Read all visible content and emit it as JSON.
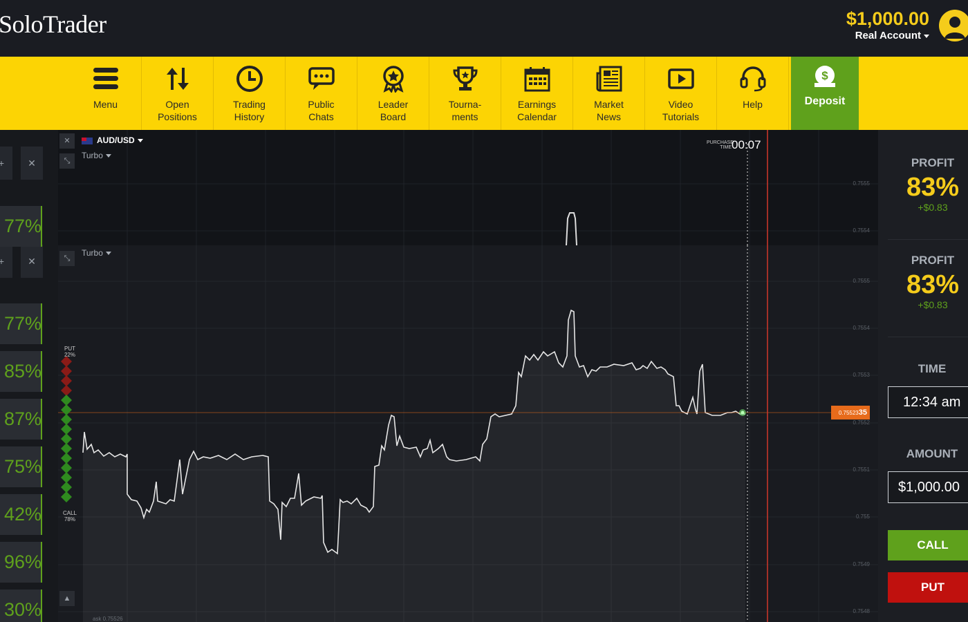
{
  "app": {
    "logo": "SoloTrader"
  },
  "account": {
    "balance": "$1,000.00",
    "account_type": "Real Account"
  },
  "toolbar": {
    "items": [
      {
        "label": "Menu",
        "icon": "menu-icon"
      },
      {
        "label": "Open\nPositions",
        "icon": "updown-arrows-icon"
      },
      {
        "label": "Trading\nHistory",
        "icon": "clock-icon"
      },
      {
        "label": "Public\nChats",
        "icon": "chat-icon"
      },
      {
        "label": "Leader\nBoard",
        "icon": "award-icon"
      },
      {
        "label": "Tourna-\nments",
        "icon": "trophy-icon"
      },
      {
        "label": "Earnings\nCalendar",
        "icon": "calendar-icon"
      },
      {
        "label": "Market\nNews",
        "icon": "newspaper-icon"
      },
      {
        "label": "Video\nTutorials",
        "icon": "video-icon"
      },
      {
        "label": "Help",
        "icon": "headset-icon"
      }
    ],
    "deposit_label": "Deposit"
  },
  "left_strip": {
    "percents": [
      "77%",
      "77%",
      "85%",
      "87%",
      "75%",
      "42%",
      "96%",
      "30%"
    ]
  },
  "chart": {
    "pair": "AUD/USD",
    "mode_top": "Turbo",
    "mode_main": "Turbo",
    "purchase_time_label": "PURCHASE TIME",
    "purchase_time": "00:07",
    "yticks_top": [
      "0.7555",
      "0.7554"
    ],
    "yticks_main": [
      "0.7555",
      "0.7554",
      "0.7553",
      "0.7552",
      "0.7551",
      "0.755",
      "0.7549",
      "0.7548"
    ],
    "price_prefix": "0.75523",
    "price_suffix": "35",
    "sentiment": {
      "put_label": "PUT",
      "put_pct": "22%",
      "call_label": "CALL",
      "call_pct": "78%"
    },
    "ask_text": "ask 0.75526"
  },
  "right_panel": {
    "profit_label": "PROFIT",
    "profit_pct": "83%",
    "profit_amount": "+$0.83",
    "time_label": "TIME",
    "time_value": "12:34 am",
    "amount_label": "AMOUNT",
    "amount_value": "$1,000.00",
    "call_label": "CALL",
    "put_label": "PUT"
  },
  "colors": {
    "brand_yellow": "#fcd404",
    "call_green": "#5fa11c",
    "put_red": "#c0110e",
    "price_orange": "#e76b1b"
  }
}
